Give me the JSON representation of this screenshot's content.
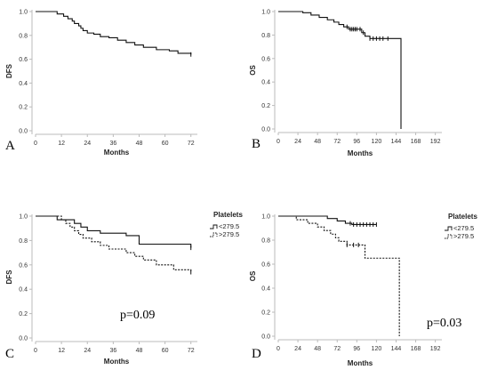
{
  "chart_data": [
    {
      "panel_label": "A",
      "type": "line",
      "xlabel": "Months",
      "ylabel": "DFS",
      "xlim": [
        0,
        75
      ],
      "ylim": [
        0,
        1.0
      ],
      "xticks": [
        "0",
        "12",
        "24",
        "36",
        "48",
        "60",
        "72"
      ],
      "yticks": [
        "0.0",
        "0.2",
        "0.4",
        "0.6",
        "0.8",
        "1.0"
      ],
      "series": [
        {
          "style": "solid",
          "x": [
            0,
            10,
            13,
            15,
            17,
            18,
            20,
            21,
            22,
            24,
            27,
            30,
            34,
            38,
            42,
            46,
            50,
            56,
            62,
            66,
            72
          ],
          "y": [
            1.0,
            0.98,
            0.96,
            0.94,
            0.92,
            0.9,
            0.88,
            0.86,
            0.84,
            0.82,
            0.81,
            0.79,
            0.78,
            0.76,
            0.74,
            0.72,
            0.7,
            0.68,
            0.67,
            0.65,
            0.64
          ],
          "censored_x": [
            72
          ]
        }
      ]
    },
    {
      "panel_label": "B",
      "type": "line",
      "xlabel": "Months",
      "ylabel": "OS",
      "xlim": [
        0,
        200
      ],
      "ylim": [
        0,
        1.0
      ],
      "xticks": [
        "0",
        "24",
        "48",
        "72",
        "96",
        "120",
        "144",
        "168",
        "192"
      ],
      "yticks": [
        "0.0",
        "0.2",
        "0.4",
        "0.6",
        "0.8",
        "1.0"
      ],
      "series": [
        {
          "style": "solid",
          "x": [
            0,
            30,
            40,
            50,
            60,
            68,
            74,
            80,
            86,
            102,
            106,
            112,
            150
          ],
          "y": [
            1.0,
            0.99,
            0.97,
            0.95,
            0.93,
            0.91,
            0.89,
            0.87,
            0.85,
            0.82,
            0.79,
            0.77,
            0.0
          ],
          "censored_x": [
            84,
            88,
            90,
            92,
            94,
            96,
            100,
            104,
            112,
            116,
            120,
            124,
            128,
            134
          ]
        }
      ]
    },
    {
      "panel_label": "C",
      "type": "line",
      "xlabel": "Months",
      "ylabel": "DFS",
      "xlim": [
        0,
        75
      ],
      "ylim": [
        0,
        1.0
      ],
      "xticks": [
        "0",
        "12",
        "24",
        "36",
        "48",
        "60",
        "72"
      ],
      "yticks": [
        "0.0",
        "0.2",
        "0.4",
        "0.6",
        "0.8",
        "1.0"
      ],
      "annotation": "p=0.09",
      "legend_title": "Platelets",
      "series": [
        {
          "name": "<279.5",
          "style": "solid",
          "x": [
            0,
            10,
            18,
            21,
            24,
            30,
            42,
            48,
            72
          ],
          "y": [
            1.0,
            0.97,
            0.94,
            0.91,
            0.88,
            0.86,
            0.84,
            0.77,
            0.74
          ],
          "censored_x": [
            72
          ]
        },
        {
          "name": ">279.5",
          "style": "dashed",
          "x": [
            0,
            12,
            14,
            16,
            18,
            20,
            22,
            26,
            30,
            34,
            42,
            46,
            50,
            56,
            64,
            72
          ],
          "y": [
            1.0,
            0.97,
            0.94,
            0.91,
            0.88,
            0.85,
            0.82,
            0.79,
            0.76,
            0.73,
            0.7,
            0.67,
            0.64,
            0.6,
            0.56,
            0.54
          ],
          "censored_x": [
            72
          ]
        }
      ]
    },
    {
      "panel_label": "D",
      "type": "line",
      "xlabel": "Months",
      "ylabel": "OS",
      "xlim": [
        0,
        200
      ],
      "ylim": [
        0,
        1.0
      ],
      "xticks": [
        "0",
        "24",
        "48",
        "72",
        "96",
        "120",
        "144",
        "168",
        "192"
      ],
      "yticks": [
        "0.0",
        "0.2",
        "0.4",
        "0.6",
        "0.8",
        "1.0"
      ],
      "annotation": "p=0.03",
      "legend_title": "Platelets",
      "series": [
        {
          "name": "<279.5",
          "style": "solid",
          "x": [
            0,
            60,
            72,
            82,
            90,
            120
          ],
          "y": [
            1.0,
            0.98,
            0.96,
            0.94,
            0.93,
            0.93
          ],
          "censored_x": [
            88,
            92,
            96,
            100,
            104,
            108,
            112,
            116,
            120
          ]
        },
        {
          "name": ">279.5",
          "style": "dashed",
          "x": [
            0,
            22,
            36,
            48,
            56,
            64,
            70,
            74,
            84,
            106,
            148
          ],
          "y": [
            1.0,
            0.97,
            0.94,
            0.91,
            0.88,
            0.85,
            0.82,
            0.79,
            0.76,
            0.65,
            0.0
          ],
          "censored_x": [
            84,
            92,
            98
          ]
        }
      ]
    }
  ]
}
